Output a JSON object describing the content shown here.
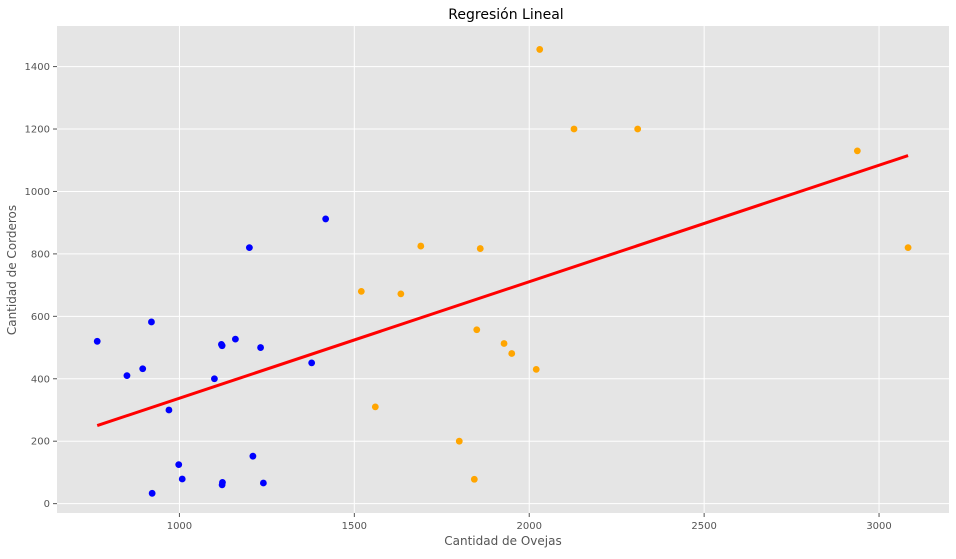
{
  "chart_data": {
    "type": "scatter",
    "title": "Regresión Lineal",
    "xlabel": "Cantidad de Ovejas",
    "ylabel": "Cantidad de Corderos",
    "xlim": [
      650,
      3200
    ],
    "ylim": [
      -30,
      1530
    ],
    "grid": true,
    "x_ticks": [
      1000,
      1500,
      2000,
      2500,
      3000
    ],
    "y_ticks": [
      0,
      200,
      400,
      600,
      800,
      1000,
      1200,
      1400
    ],
    "series": [
      {
        "color": "#0000ff",
        "points": [
          [
            765,
            520
          ],
          [
            850,
            410
          ],
          [
            895,
            432
          ],
          [
            920,
            582
          ],
          [
            922,
            33
          ],
          [
            970,
            300
          ],
          [
            998,
            125
          ],
          [
            1008,
            79
          ],
          [
            1100,
            400
          ],
          [
            1120,
            510
          ],
          [
            1122,
            506
          ],
          [
            1122,
            60
          ],
          [
            1123,
            68
          ],
          [
            1160,
            527
          ],
          [
            1200,
            820
          ],
          [
            1210,
            152
          ],
          [
            1232,
            500
          ],
          [
            1240,
            66
          ],
          [
            1378,
            451
          ],
          [
            1418,
            912
          ]
        ]
      },
      {
        "color": "#ffa500",
        "points": [
          [
            1520,
            680
          ],
          [
            1560,
            310
          ],
          [
            1633,
            672
          ],
          [
            1690,
            825
          ],
          [
            1800,
            200
          ],
          [
            1843,
            78
          ],
          [
            1850,
            557
          ],
          [
            1860,
            817
          ],
          [
            1928,
            513
          ],
          [
            1950,
            481
          ],
          [
            2020,
            430
          ],
          [
            2030,
            1455
          ],
          [
            2128,
            1200
          ],
          [
            2310,
            1200
          ],
          [
            2938,
            1130
          ],
          [
            3083,
            820
          ]
        ]
      }
    ],
    "regression_line": {
      "color": "#ff0000",
      "start": [
        765,
        250
      ],
      "end": [
        3083,
        1115
      ]
    }
  }
}
